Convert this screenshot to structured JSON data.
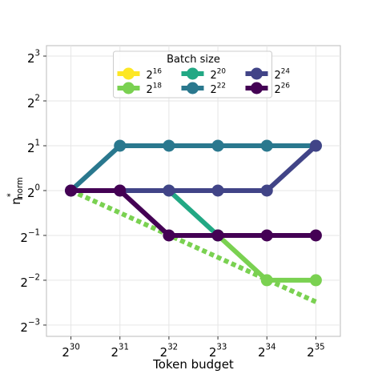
{
  "chart_data": {
    "type": "line",
    "xlabel": "Token budget",
    "ylabel": "η^*_norm",
    "legend_title": "Batch size",
    "legend": "upper center",
    "grid": true,
    "log_x": 2,
    "log_y": 2,
    "x": [
      1073741824,
      2147483648,
      4294967296,
      8589934592,
      17179869184,
      34359738368
    ],
    "xlim": [
      759250125,
      48592007999
    ],
    "xticks": [
      {
        "value": 1073741824,
        "label": "2^30"
      },
      {
        "value": 2147483648,
        "label": "2^31"
      },
      {
        "value": 4294967296,
        "label": "2^32"
      },
      {
        "value": 8589934592,
        "label": "2^33"
      },
      {
        "value": 17179869184,
        "label": "2^34"
      },
      {
        "value": 34359738368,
        "label": "2^35"
      }
    ],
    "ylim": [
      0.105,
      9.4
    ],
    "yticks": [
      {
        "value": 0.125,
        "label": "2^−3"
      },
      {
        "value": 0.25,
        "label": "2^−2"
      },
      {
        "value": 0.5,
        "label": "2^−1"
      },
      {
        "value": 1,
        "label": "2^0"
      },
      {
        "value": 2,
        "label": "2^1"
      },
      {
        "value": 4,
        "label": "2^2"
      },
      {
        "value": 8,
        "label": "2^3"
      }
    ],
    "trend_line": {
      "x": [
        1073741824,
        34359738368
      ],
      "values": [
        1,
        0.179
      ],
      "color": "#7ad151"
    },
    "series": [
      {
        "name": "2^16",
        "color": "#fde725",
        "values": [
          null,
          null,
          null,
          null,
          null,
          null
        ]
      },
      {
        "name": "2^18",
        "color": "#7ad151",
        "values": [
          null,
          null,
          null,
          0.5,
          0.25,
          0.25
        ]
      },
      {
        "name": "2^20",
        "color": "#22a884",
        "values": [
          null,
          null,
          1,
          0.5,
          null,
          null
        ]
      },
      {
        "name": "2^22",
        "color": "#2a788e",
        "values": [
          1,
          2,
          2,
          2,
          2,
          2
        ]
      },
      {
        "name": "2^24",
        "color": "#414487",
        "values": [
          1,
          1,
          1,
          1,
          1,
          2
        ]
      },
      {
        "name": "2^26",
        "color": "#440154",
        "values": [
          1,
          1,
          0.5,
          0.5,
          0.5,
          0.5
        ]
      }
    ]
  }
}
